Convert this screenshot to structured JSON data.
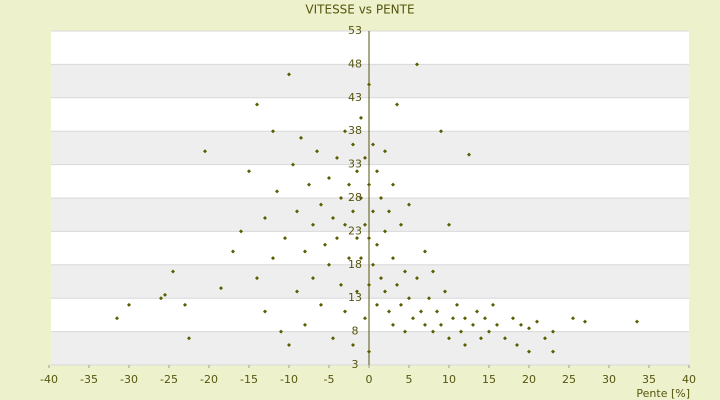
{
  "chart_data": {
    "type": "scatter",
    "title": "VITESSE vs PENTE",
    "x_label": "Pente [%]",
    "xlim": [
      -40,
      40
    ],
    "ylim": [
      3,
      53
    ],
    "xticks": [
      -40,
      -35,
      -30,
      -25,
      -20,
      -15,
      -10,
      -5,
      0,
      5,
      10,
      15,
      20,
      25,
      30,
      35,
      40
    ],
    "yticks": [
      3,
      8,
      13,
      18,
      23,
      28,
      33,
      38,
      43,
      48,
      53
    ],
    "grid": true,
    "color": "#5c5c00",
    "x": [
      -31.5,
      -30,
      -26,
      -25.5,
      -23,
      -22.5,
      -24.5,
      -20.5,
      -18.5,
      -17,
      -16,
      -15,
      -14,
      -14,
      -13,
      -13,
      -12,
      -12,
      -11.5,
      -11,
      -10.5,
      -10,
      -10,
      -9.5,
      -9,
      -9,
      -8.5,
      -8,
      -8,
      -7.5,
      -7,
      -7,
      -6.5,
      -6,
      -6,
      -5.5,
      -5,
      -5,
      -4.5,
      -4.5,
      -4,
      -4,
      -3.5,
      -3.5,
      -3,
      -3,
      -3,
      -2.5,
      -2.5,
      -2,
      -2,
      -2,
      -1.5,
      -1.5,
      -1.5,
      -1,
      -1,
      -1,
      -0.5,
      -0.5,
      -0.5,
      0,
      0,
      0,
      0,
      0,
      0.5,
      0.5,
      0.5,
      1,
      1,
      1,
      1.5,
      1.5,
      2,
      2,
      2,
      2.5,
      2.5,
      3,
      3,
      3,
      3.5,
      3.5,
      4,
      4,
      4.5,
      4.5,
      5,
      5,
      5.5,
      6,
      6,
      6.5,
      7,
      7,
      7.5,
      8,
      8,
      8.5,
      9,
      9,
      9.5,
      10,
      10,
      10.5,
      11,
      11.5,
      12,
      12,
      12.5,
      13,
      13.5,
      14,
      14.5,
      15,
      15.5,
      16,
      17,
      18,
      18.5,
      19,
      20,
      20,
      21,
      22,
      23,
      23,
      25.5,
      27,
      33.5
    ],
    "values": [
      10,
      12,
      13,
      13.5,
      12,
      7,
      17,
      35,
      14.5,
      20,
      23,
      32,
      42,
      16,
      25,
      11,
      38,
      19,
      29,
      8,
      22,
      46.5,
      6,
      33,
      26,
      14,
      37,
      20,
      9,
      30,
      24,
      16,
      35,
      27,
      12,
      21,
      31,
      18,
      25,
      7,
      34,
      22,
      28,
      15,
      38,
      24,
      11,
      30,
      19,
      36,
      26,
      6,
      32,
      22,
      14,
      40,
      28,
      19,
      34,
      24,
      10,
      45,
      30,
      22,
      15,
      5,
      36,
      26,
      18,
      32,
      21,
      12,
      28,
      16,
      35,
      23,
      14,
      26,
      11,
      30,
      19,
      9,
      42,
      15,
      24,
      12,
      17,
      8,
      27,
      13,
      10,
      48,
      16,
      11,
      20,
      9,
      13,
      17,
      8,
      11,
      38,
      9,
      14,
      24,
      7,
      10,
      12,
      8,
      10,
      6,
      34.5,
      9,
      11,
      7,
      10,
      8,
      12,
      9,
      7,
      10,
      6,
      9,
      5,
      8.5,
      9.5,
      7,
      5,
      8,
      10,
      9.5,
      9.5
    ]
  }
}
